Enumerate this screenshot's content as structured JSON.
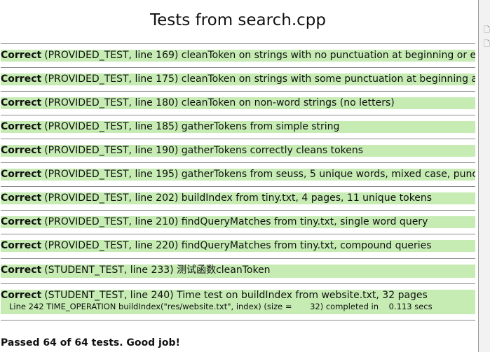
{
  "page_title": "Tests from search.cpp",
  "results": [
    {
      "status": "Correct",
      "desc": "(PROVIDED_TEST, line 169) cleanToken on strings with no punctuation at beginning or end"
    },
    {
      "status": "Correct",
      "desc": "(PROVIDED_TEST, line 175) cleanToken on strings with some punctuation at beginning and end"
    },
    {
      "status": "Correct",
      "desc": "(PROVIDED_TEST, line 180) cleanToken on non-word strings (no letters)"
    },
    {
      "status": "Correct",
      "desc": "(PROVIDED_TEST, line 185) gatherTokens from simple string"
    },
    {
      "status": "Correct",
      "desc": "(PROVIDED_TEST, line 190) gatherTokens correctly cleans tokens"
    },
    {
      "status": "Correct",
      "desc": "(PROVIDED_TEST, line 195) gatherTokens from seuss, 5 unique words, mixed case, punctuation"
    },
    {
      "status": "Correct",
      "desc": "(PROVIDED_TEST, line 202) buildIndex from tiny.txt, 4 pages, 11 unique tokens"
    },
    {
      "status": "Correct",
      "desc": "(PROVIDED_TEST, line 210) findQueryMatches from tiny.txt, single word query"
    },
    {
      "status": "Correct",
      "desc": "(PROVIDED_TEST, line 220) findQueryMatches from tiny.txt, compound queries"
    },
    {
      "status": "Correct",
      "desc": "(STUDENT_TEST, line 233) 测试函数cleanToken"
    },
    {
      "status": "Correct",
      "desc": "(STUDENT_TEST, line 240) Time test on buildIndex from website.txt, 32 pages",
      "detail": "Line 242 TIME_OPERATION buildIndex(\"res/website.txt\", index) (size =       32) completed in    0.113 secs"
    }
  ],
  "summary": "Passed 64 of 64 tests. Good job!",
  "side_strip": {
    "glyph_1": "🗋",
    "glyph_2": "🗋"
  }
}
